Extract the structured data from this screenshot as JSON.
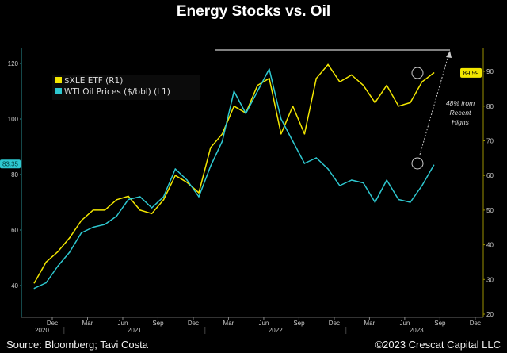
{
  "chart_data": {
    "type": "line",
    "title": "Energy Stocks vs. Oil",
    "source": "Source: Bloomberg; Tavi Costa",
    "copyright": "©2023 Crescat Capital LLC",
    "x": [
      "2020-10",
      "2020-11",
      "2020-12",
      "2021-01",
      "2021-02",
      "2021-03",
      "2021-04",
      "2021-05",
      "2021-06",
      "2021-07",
      "2021-08",
      "2021-09",
      "2021-10",
      "2021-11",
      "2021-12",
      "2022-01",
      "2022-02",
      "2022-03",
      "2022-04",
      "2022-05",
      "2022-06",
      "2022-07",
      "2022-08",
      "2022-09",
      "2022-10",
      "2022-11",
      "2022-12",
      "2023-01",
      "2023-02",
      "2023-03",
      "2023-04",
      "2023-05",
      "2023-06",
      "2023-07",
      "2023-08"
    ],
    "series": [
      {
        "name": "$XLE ETF (R1)",
        "axis": "right",
        "color": "#f2e600",
        "values": [
          29,
          35,
          38,
          42,
          47,
          50,
          50,
          53,
          54,
          50,
          49,
          53,
          60,
          58,
          55,
          68,
          72,
          80,
          78,
          86,
          88,
          72,
          80,
          72,
          88,
          92,
          87,
          89,
          86,
          81,
          86,
          80,
          81,
          87,
          89.59
        ]
      },
      {
        "name": "WTI Oil Prices ($/bbl) (L1)",
        "axis": "left",
        "color": "#2ec8d0",
        "values": [
          39,
          41,
          47,
          52,
          59,
          61,
          62,
          65,
          71,
          72,
          68,
          72,
          82,
          78,
          72,
          83,
          92,
          110,
          102,
          110,
          118,
          100,
          92,
          84,
          86,
          82,
          76,
          78,
          77,
          70,
          78,
          71,
          70,
          76,
          83.35
        ]
      }
    ],
    "left_axis": {
      "ticks": [
        "40",
        "60",
        "80",
        "100",
        "120"
      ],
      "range": [
        32,
        124
      ],
      "last_value": "83.35"
    },
    "right_axis": {
      "ticks": [
        "20",
        "30",
        "40",
        "50",
        "60",
        "70",
        "80",
        "90"
      ],
      "range": [
        19,
        92
      ],
      "last_value": "89.59"
    },
    "x_ticks": [
      "Dec",
      "Mar",
      "Jun",
      "Sep",
      "Dec",
      "Mar",
      "Jun",
      "Sep",
      "Dec",
      "Mar",
      "Jun",
      "Sep",
      "Dec"
    ],
    "year_labels": [
      "2020",
      "2021",
      "2022",
      "2023"
    ],
    "annotation": [
      "48% from",
      "Recent",
      "Highs"
    ],
    "grid": false,
    "legend_placement": "top-left"
  }
}
